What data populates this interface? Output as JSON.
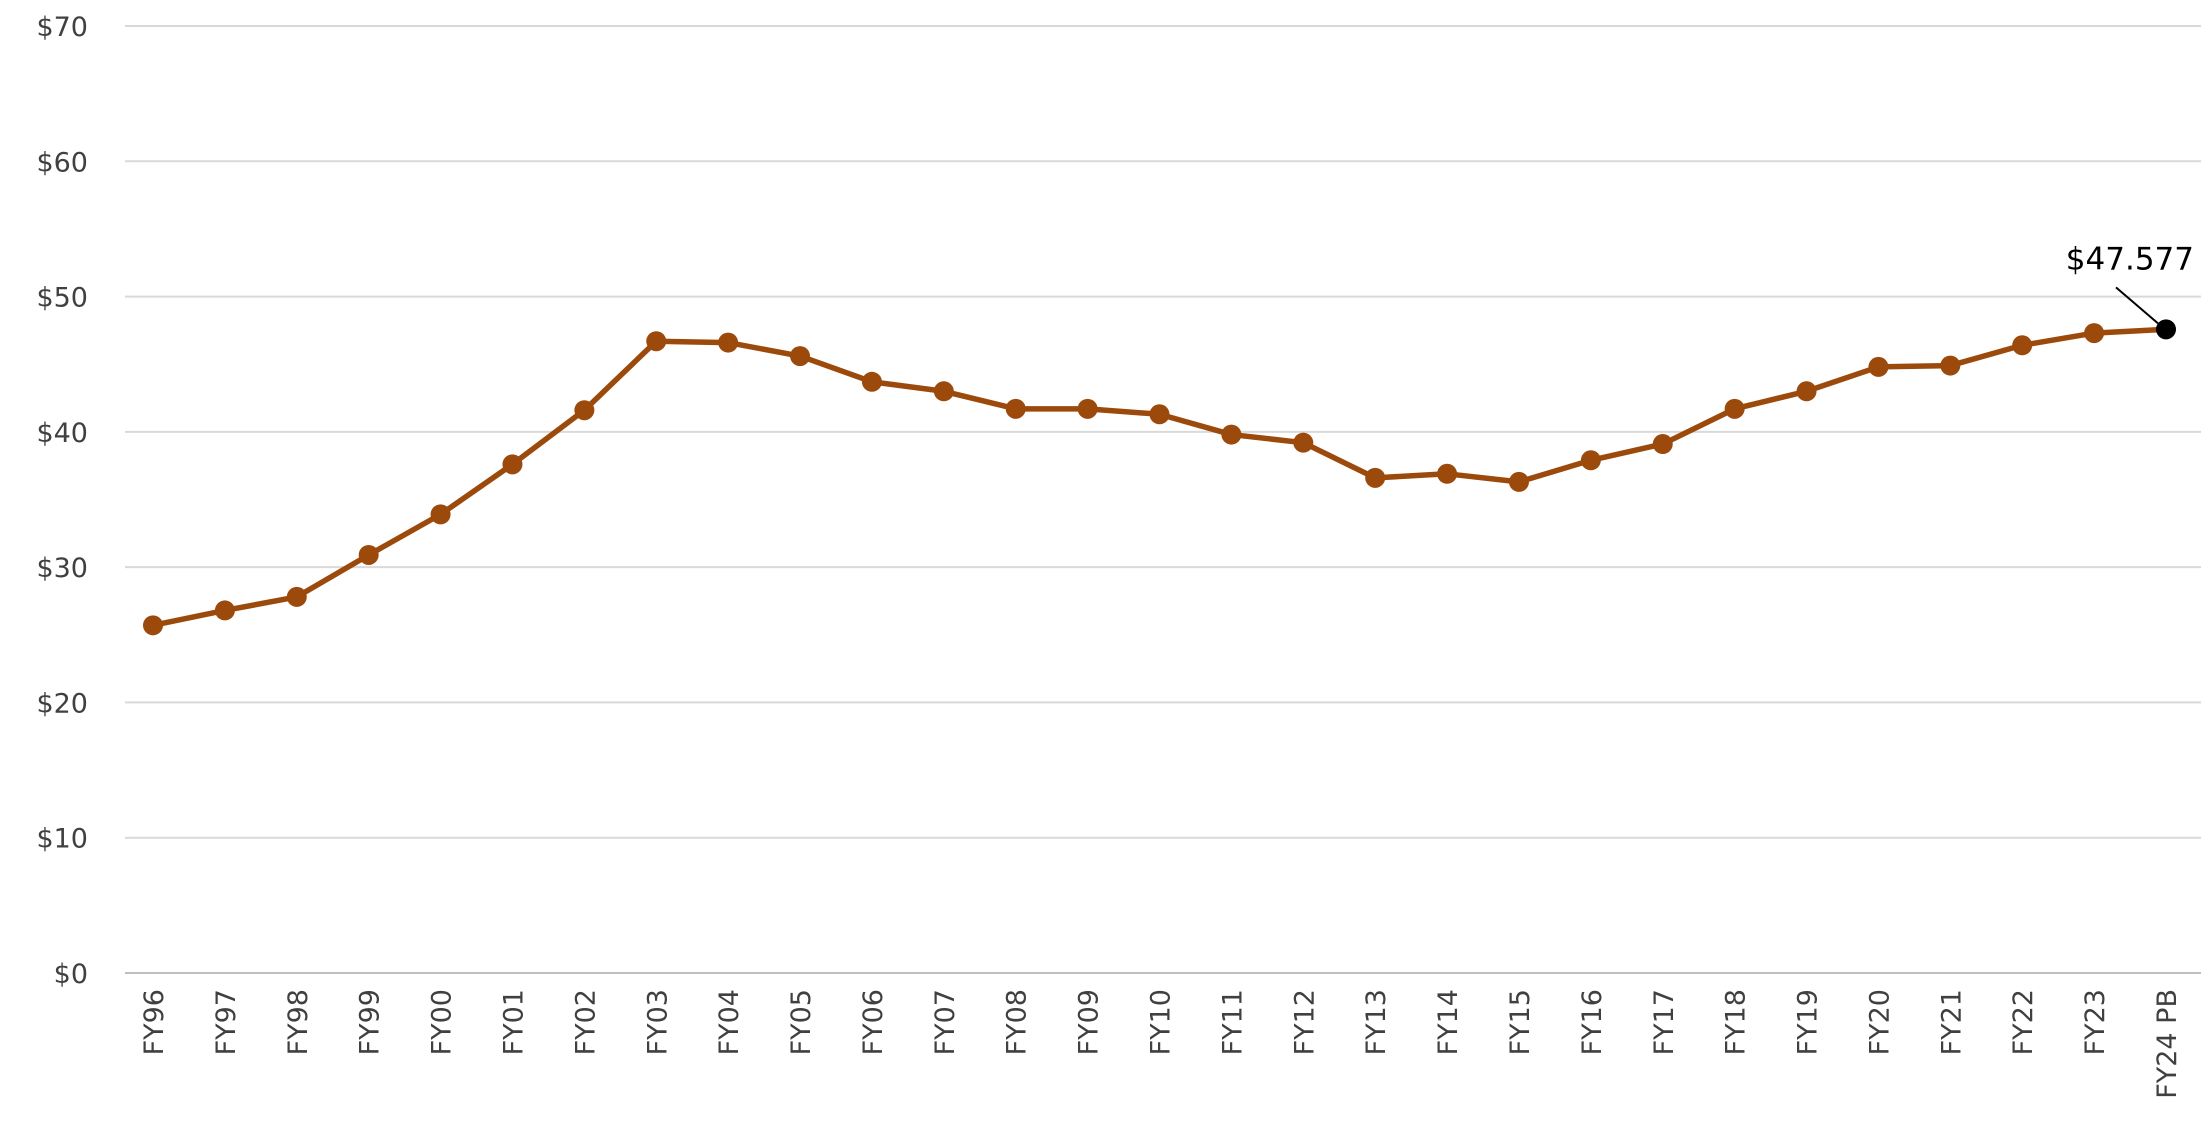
{
  "chart_data": {
    "type": "line",
    "categories": [
      "FY96",
      "FY97",
      "FY98",
      "FY99",
      "FY00",
      "FY01",
      "FY02",
      "FY03",
      "FY04",
      "FY05",
      "FY06",
      "FY07",
      "FY08",
      "FY09",
      "FY10",
      "FY11",
      "FY12",
      "FY13",
      "FY14",
      "FY15",
      "FY16",
      "FY17",
      "FY18",
      "FY19",
      "FY20",
      "FY21",
      "FY22",
      "FY23",
      "FY24 PB"
    ],
    "series": [
      {
        "color": "#9c4a0c",
        "values": [
          25.7,
          26.8,
          27.8,
          30.9,
          33.9,
          37.6,
          41.6,
          46.7,
          46.6,
          45.6,
          43.7,
          43.0,
          41.7,
          41.7,
          41.3,
          39.8,
          39.2,
          36.6,
          36.9,
          36.3,
          37.9,
          39.1,
          41.7,
          43.0,
          44.8,
          44.9,
          46.4,
          47.3,
          47.577
        ],
        "point_colors": [
          "#9c4a0c",
          "#9c4a0c",
          "#9c4a0c",
          "#9c4a0c",
          "#9c4a0c",
          "#9c4a0c",
          "#9c4a0c",
          "#9c4a0c",
          "#9c4a0c",
          "#9c4a0c",
          "#9c4a0c",
          "#9c4a0c",
          "#9c4a0c",
          "#9c4a0c",
          "#9c4a0c",
          "#9c4a0c",
          "#9c4a0c",
          "#9c4a0c",
          "#9c4a0c",
          "#9c4a0c",
          "#9c4a0c",
          "#9c4a0c",
          "#9c4a0c",
          "#9c4a0c",
          "#9c4a0c",
          "#9c4a0c",
          "#9c4a0c",
          "#9c4a0c",
          "#000000"
        ],
        "value_labels": [
          null,
          null,
          null,
          null,
          null,
          null,
          null,
          null,
          null,
          null,
          null,
          null,
          null,
          null,
          null,
          null,
          null,
          null,
          null,
          null,
          null,
          null,
          null,
          null,
          null,
          null,
          null,
          null,
          "$47.577"
        ]
      }
    ],
    "ylim": [
      0,
      70
    ],
    "yticks": [
      {
        "value": 0,
        "label": "$0"
      },
      {
        "value": 10,
        "label": "$10"
      },
      {
        "value": 20,
        "label": "$20"
      },
      {
        "value": 30,
        "label": "$30"
      },
      {
        "value": 40,
        "label": "$40"
      },
      {
        "value": 50,
        "label": "$50"
      },
      {
        "value": 60,
        "label": "$60"
      },
      {
        "value": 70,
        "label": "$70"
      }
    ],
    "grid": true
  }
}
